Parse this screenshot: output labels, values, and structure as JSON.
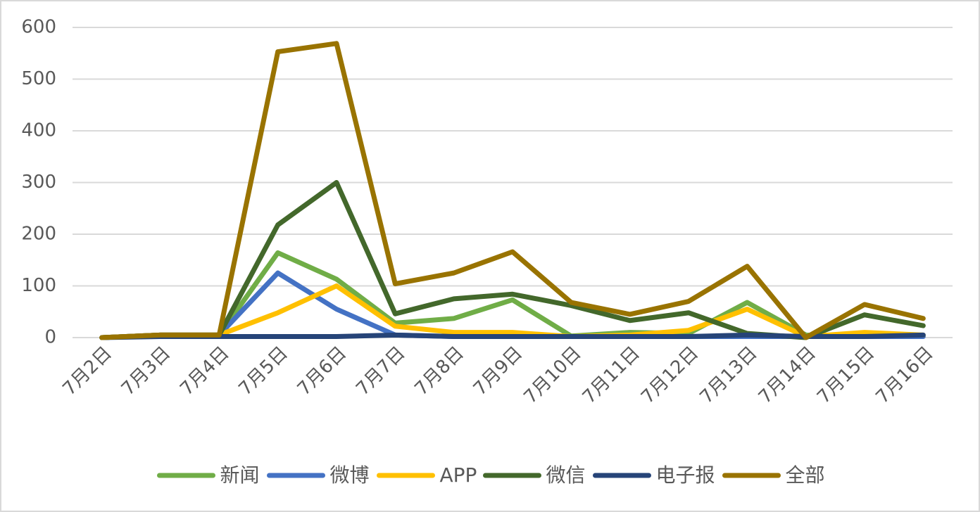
{
  "chart_data": {
    "type": "line",
    "categories": [
      "7月2日",
      "7月3日",
      "7月4日",
      "7月5日",
      "7月6日",
      "7月7日",
      "7月8日",
      "7月9日",
      "7月10日",
      "7月11日",
      "7月12日",
      "7月13日",
      "7月14日",
      "7月15日",
      "7月16日"
    ],
    "series": [
      {
        "name": "新闻",
        "color": "#70ad47",
        "values": [
          0,
          5,
          5,
          164,
          113,
          28,
          37,
          73,
          3,
          10,
          8,
          68,
          5,
          3,
          3
        ]
      },
      {
        "name": "微博",
        "color": "#4472c4",
        "values": [
          0,
          5,
          5,
          125,
          55,
          5,
          2,
          2,
          2,
          2,
          2,
          2,
          2,
          2,
          2
        ]
      },
      {
        "name": "APP",
        "color": "#ffc000",
        "values": [
          0,
          5,
          5,
          48,
          100,
          22,
          10,
          10,
          2,
          5,
          14,
          55,
          2,
          10,
          5
        ]
      },
      {
        "name": "微信",
        "color": "#43682b",
        "values": [
          0,
          5,
          5,
          218,
          300,
          46,
          75,
          84,
          62,
          33,
          48,
          8,
          0,
          44,
          23
        ]
      },
      {
        "name": "电子报",
        "color": "#264478",
        "values": [
          0,
          2,
          2,
          2,
          2,
          5,
          2,
          2,
          2,
          2,
          2,
          5,
          2,
          2,
          5
        ]
      },
      {
        "name": "全部",
        "color": "#997300",
        "values": [
          0,
          5,
          5,
          553,
          569,
          104,
          125,
          166,
          68,
          45,
          70,
          138,
          0,
          64,
          37
        ]
      }
    ],
    "ylim": [
      0,
      600
    ],
    "yticks": [
      0,
      100,
      200,
      300,
      400,
      500,
      600
    ],
    "grid": true,
    "legend": "bottom"
  }
}
